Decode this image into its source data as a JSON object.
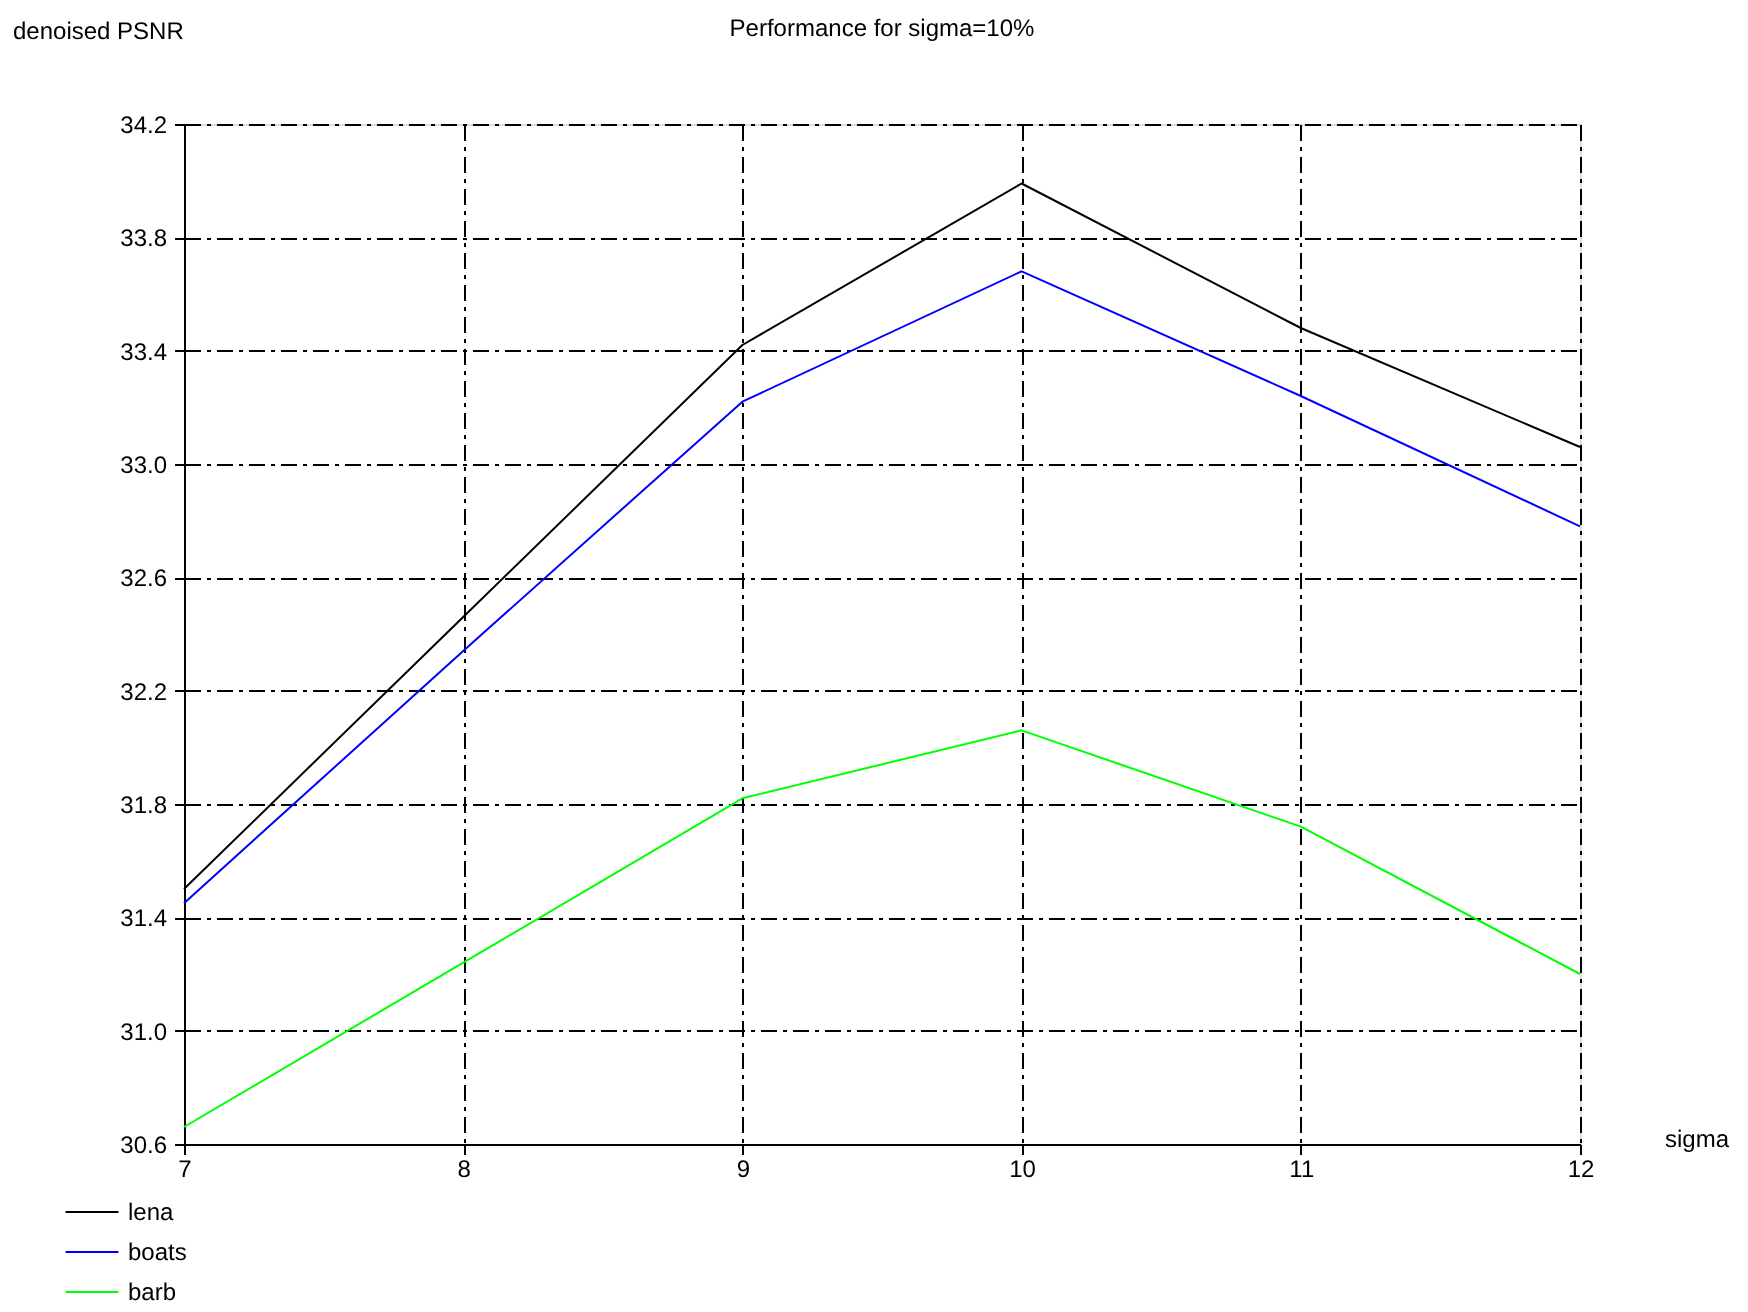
{
  "chart_data": {
    "type": "line",
    "title": "Performance for sigma=10%",
    "xlabel": "sigma",
    "ylabel": "denoised PSNR",
    "x": [
      7,
      8,
      9,
      10,
      11,
      12
    ],
    "series": [
      {
        "name": "lena",
        "color": "#000000",
        "values": [
          31.5,
          32.46,
          33.42,
          33.99,
          33.48,
          33.06
        ]
      },
      {
        "name": "boats",
        "color": "#0000ff",
        "values": [
          31.45,
          32.34,
          33.22,
          33.68,
          33.24,
          32.78
        ]
      },
      {
        "name": "barb",
        "color": "#00ff00",
        "values": [
          30.66,
          31.24,
          31.82,
          32.06,
          31.72,
          31.2
        ]
      }
    ],
    "xlim": [
      7,
      12
    ],
    "xticks": [
      7,
      8,
      9,
      10,
      11,
      12
    ],
    "ylim": [
      30.6,
      34.2
    ],
    "yticks": [
      {
        "value": 30.6,
        "label": "30.6"
      },
      {
        "value": 31.0,
        "label": "31.0"
      },
      {
        "value": 31.4,
        "label": "31.4"
      },
      {
        "value": 31.8,
        "label": "31.8"
      },
      {
        "value": 32.2,
        "label": "32.2"
      },
      {
        "value": 32.6,
        "label": "32.6"
      },
      {
        "value": 33.0,
        "label": "33.0"
      },
      {
        "value": 33.4,
        "label": "33.4"
      },
      {
        "value": 33.8,
        "label": "33.8"
      },
      {
        "value": 34.2,
        "label": "34.2"
      }
    ],
    "grid": true,
    "legend": "bottom left",
    "marker": "none",
    "line_style": "solid"
  }
}
